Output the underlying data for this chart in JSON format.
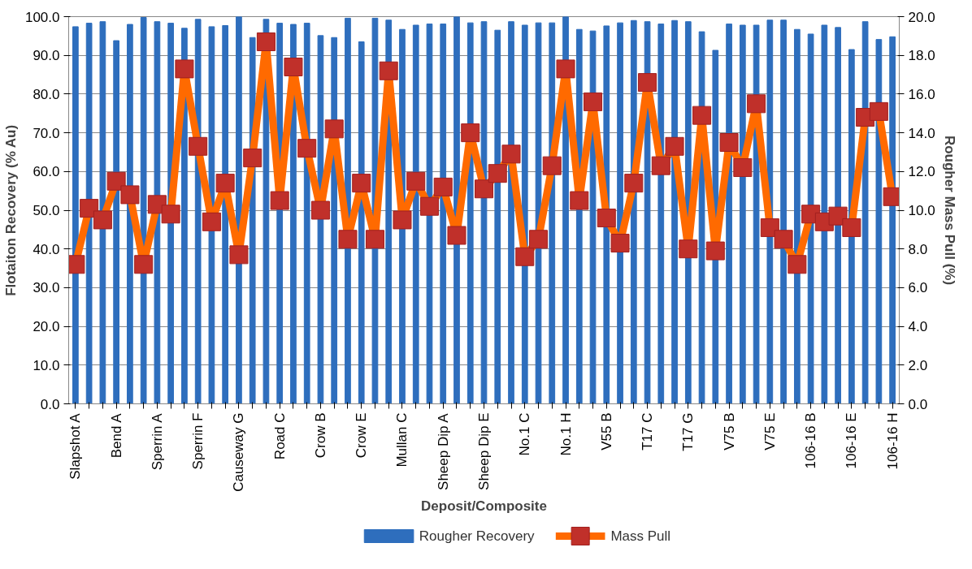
{
  "chart_data": {
    "type": "bar",
    "xlabel": "Deposit/Composite",
    "ylabel": "Flotaiton Recovery (% Au)",
    "y2label": "Rougher Mass Pull (%)",
    "categories": [
      "Slapshot A",
      null,
      null,
      "Bend A",
      null,
      null,
      "Sperrin A",
      null,
      null,
      "Sperrin F",
      null,
      null,
      "Causeway G",
      null,
      null,
      "Road C",
      null,
      null,
      "Crow B",
      null,
      null,
      "Crow E",
      null,
      null,
      "Mullan C",
      null,
      null,
      "Sheep Dip A",
      null,
      null,
      "Sheep Dip E",
      null,
      null,
      "No.1 C",
      null,
      null,
      "No.1 H",
      null,
      null,
      "V55 B",
      null,
      null,
      "T17 C",
      null,
      null,
      "T17 G",
      null,
      null,
      "V75 B",
      null,
      null,
      "V75 E",
      null,
      null,
      "106-16 B",
      null,
      null,
      "106-16 E",
      null,
      null,
      "106-16 H"
    ],
    "series": [
      {
        "name": "Rougher Recovery",
        "color": "#2e6ebd",
        "values": [
          97.4,
          98.3,
          98.7,
          93.8,
          98.0,
          99.8,
          98.7,
          98.3,
          97.0,
          99.3,
          97.4,
          97.7,
          100.0,
          94.6,
          99.3,
          98.3,
          98.0,
          98.3,
          95.1,
          94.6,
          99.6,
          93.5,
          99.6,
          99.1,
          96.7,
          97.8,
          98.1,
          98.1,
          100.0,
          98.4,
          98.7,
          96.5,
          98.7,
          97.8,
          98.4,
          98.4,
          100.0,
          96.7,
          96.3,
          97.6,
          98.4,
          99.0,
          98.7,
          98.1,
          99.0,
          98.7,
          96.1,
          91.3,
          98.1,
          97.8,
          97.8,
          99.1,
          99.1,
          96.7,
          95.5,
          97.8,
          97.2,
          91.5,
          98.7,
          94.1,
          94.8
        ]
      },
      {
        "name": "Mass Pull",
        "type": "line",
        "axis": "y2",
        "color": "#ff6a00",
        "marker": "square",
        "values": [
          7.2,
          10.1,
          9.5,
          11.5,
          10.8,
          7.2,
          10.3,
          9.8,
          17.3,
          13.3,
          9.4,
          11.4,
          7.7,
          12.7,
          18.7,
          10.5,
          17.4,
          13.2,
          10.0,
          14.2,
          8.5,
          11.4,
          8.5,
          17.2,
          9.5,
          11.5,
          10.2,
          11.2,
          8.7,
          14.0,
          11.1,
          11.9,
          12.9,
          7.6,
          8.5,
          12.3,
          17.3,
          10.5,
          15.6,
          9.6,
          8.3,
          11.4,
          16.6,
          12.3,
          13.3,
          8.0,
          14.9,
          7.9,
          13.5,
          12.2,
          15.5,
          9.1,
          8.5,
          7.2,
          9.8,
          9.4,
          9.7,
          9.1,
          14.8,
          15.1,
          10.7
        ]
      }
    ],
    "ylim": [
      0,
      100
    ],
    "yticks": [
      {
        "value": 0,
        "label": "0.0"
      },
      {
        "value": 10,
        "label": "10.0"
      },
      {
        "value": 20,
        "label": "20.0"
      },
      {
        "value": 30,
        "label": "30.0"
      },
      {
        "value": 40,
        "label": "40.0"
      },
      {
        "value": 50,
        "label": "50.0"
      },
      {
        "value": 60,
        "label": "60.0"
      },
      {
        "value": 70,
        "label": "70.0"
      },
      {
        "value": 80,
        "label": "80.0"
      },
      {
        "value": 90,
        "label": "90.0"
      },
      {
        "value": 100,
        "label": "100.0"
      }
    ],
    "y2lim": [
      0,
      20
    ],
    "y2ticks": [
      {
        "value": 0,
        "label": "0.0"
      },
      {
        "value": 2,
        "label": "2.0"
      },
      {
        "value": 4,
        "label": "4.0"
      },
      {
        "value": 6,
        "label": "6.0"
      },
      {
        "value": 8,
        "label": "8.0"
      },
      {
        "value": 10,
        "label": "10.0"
      },
      {
        "value": 12,
        "label": "12.0"
      },
      {
        "value": 14,
        "label": "14.0"
      },
      {
        "value": 16,
        "label": "16.0"
      },
      {
        "value": 18,
        "label": "18.0"
      },
      {
        "value": 20,
        "label": "20.0"
      }
    ],
    "grid": "y",
    "legend": "bottom"
  }
}
